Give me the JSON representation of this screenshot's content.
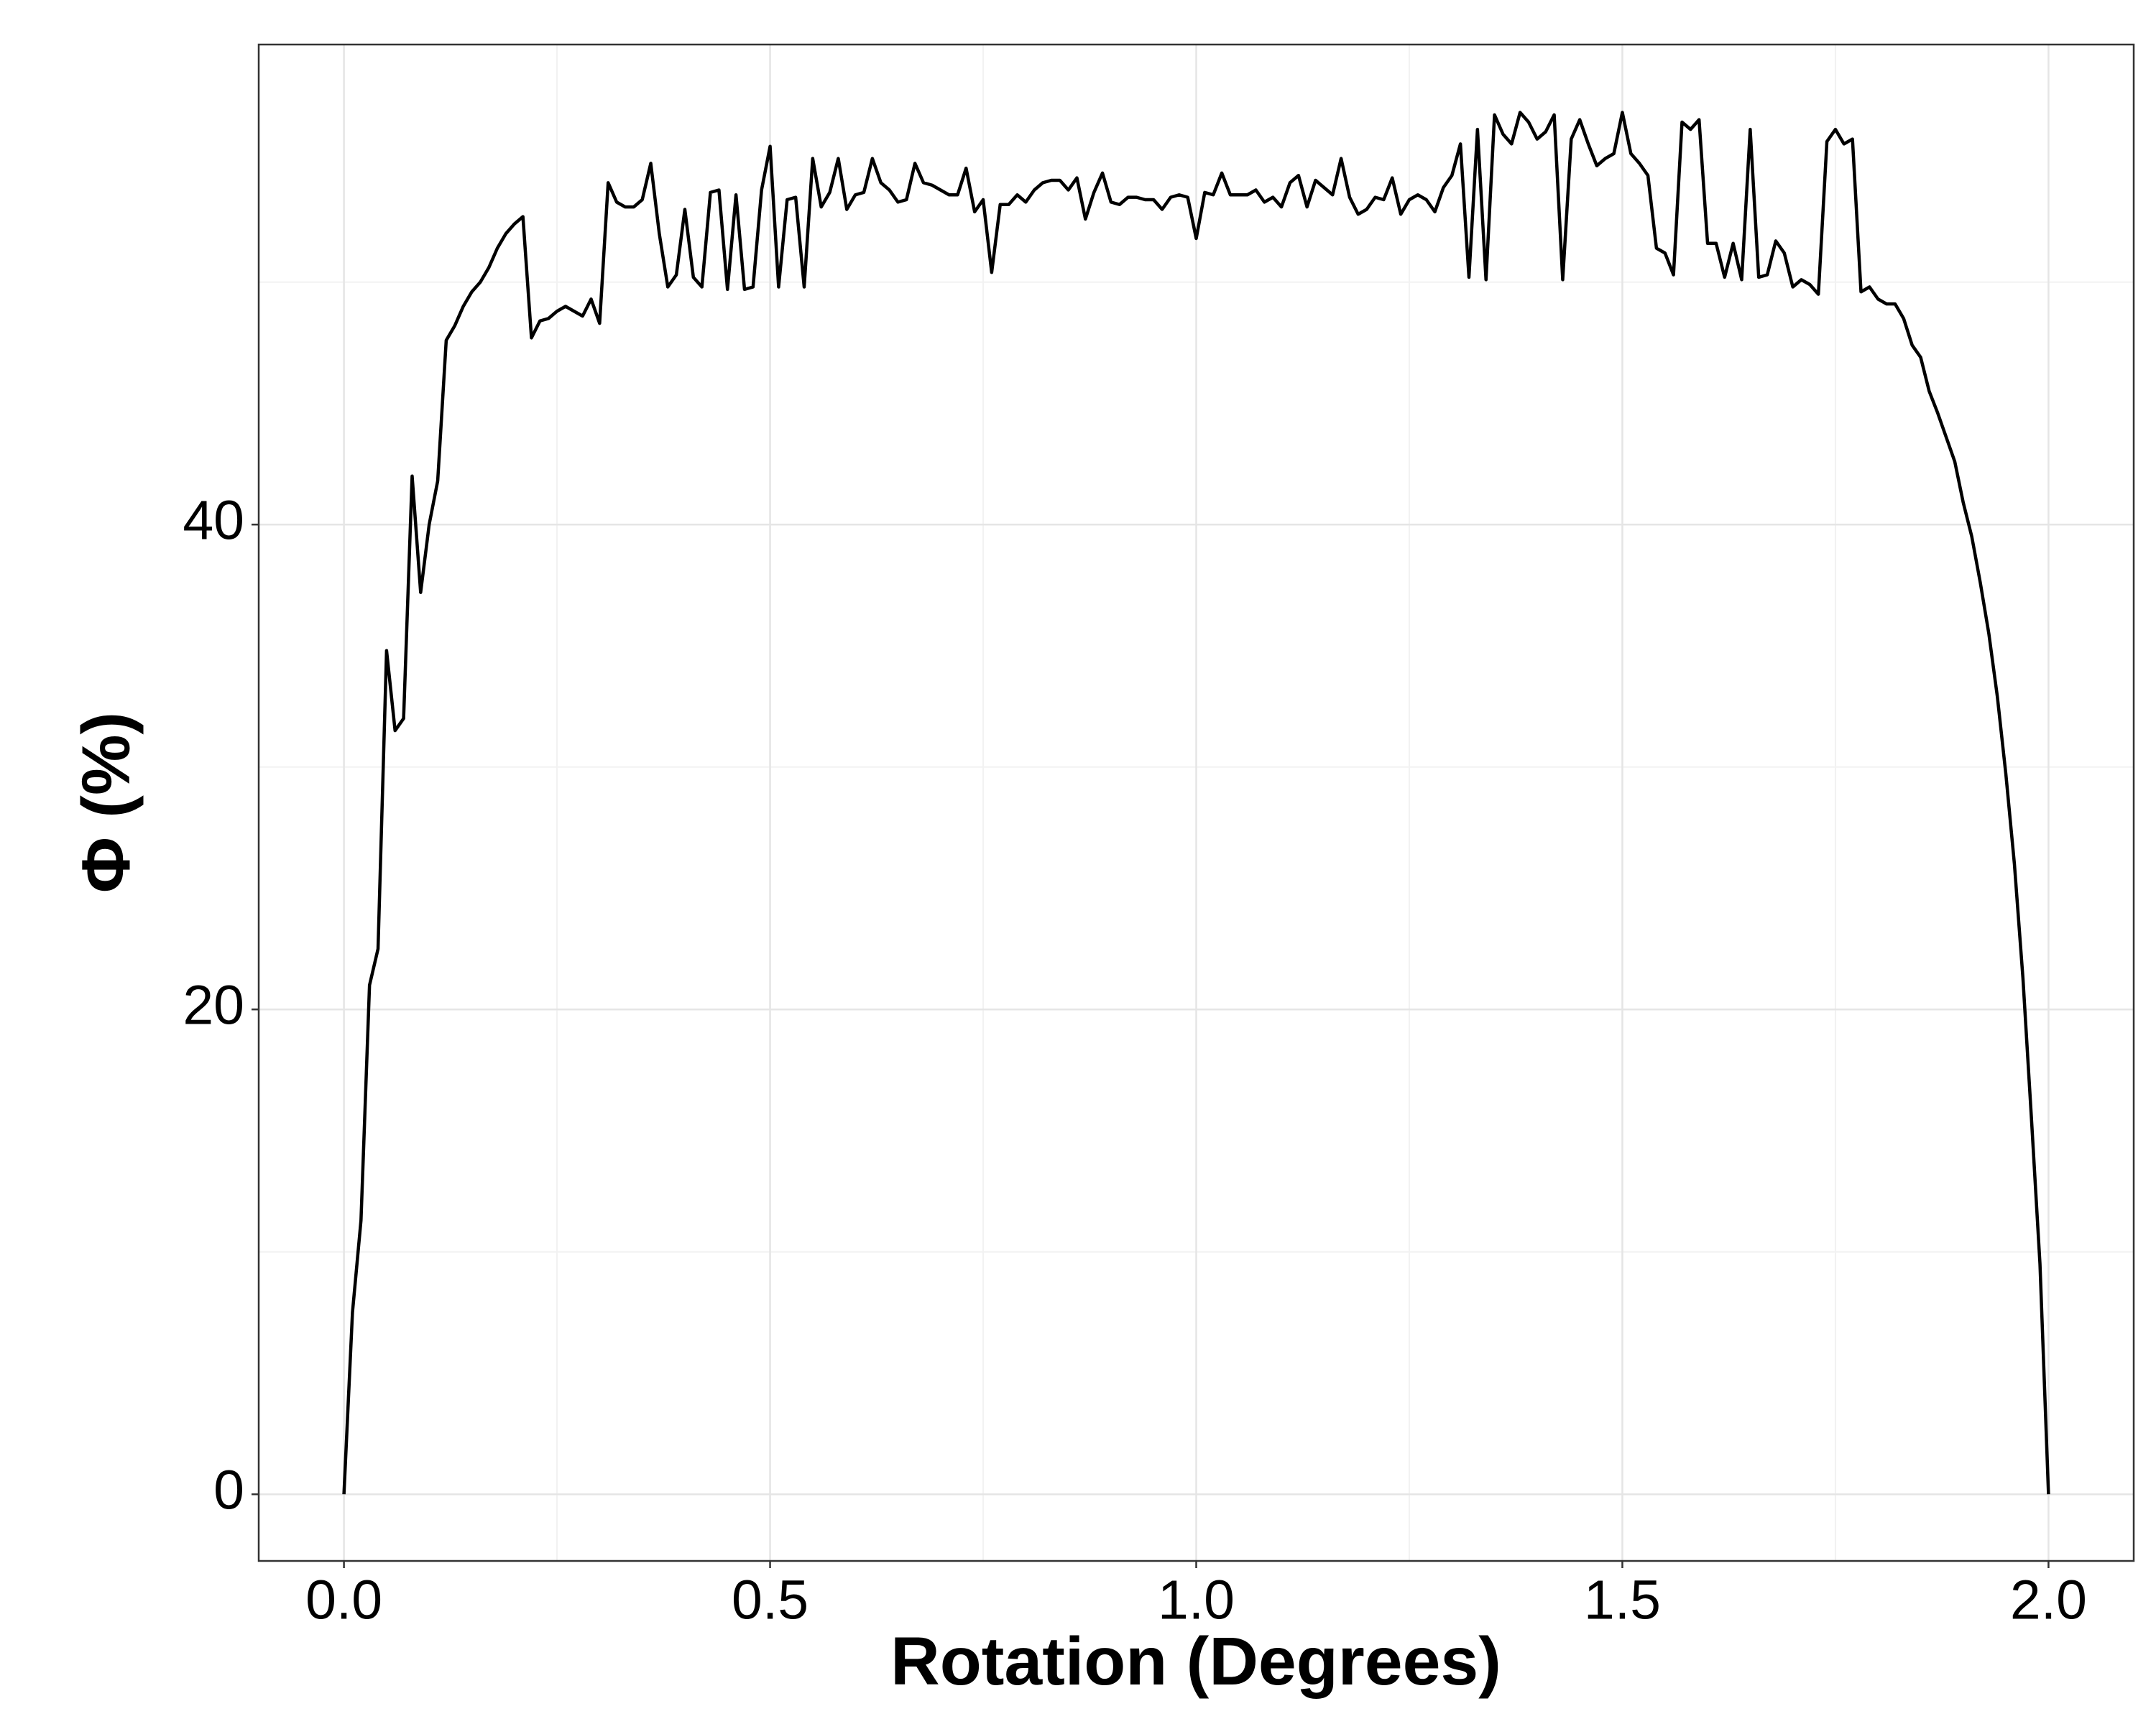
{
  "chart_data": {
    "type": "line",
    "x_label": "Rotation (Degrees)",
    "y_label": "Φ (%)",
    "x": [
      0,
      0.01,
      0.02,
      0.03,
      0.04,
      0.05,
      0.06,
      0.07,
      0.08,
      0.09,
      0.1,
      0.11,
      0.12,
      0.13,
      0.14,
      0.15,
      0.16,
      0.17,
      0.18,
      0.19,
      0.2,
      0.21,
      0.22,
      0.23,
      0.24,
      0.25,
      0.26,
      0.27,
      0.28,
      0.29,
      0.3,
      0.31,
      0.32,
      0.33,
      0.34,
      0.35,
      0.36,
      0.37,
      0.38,
      0.39,
      0.4,
      0.41,
      0.42,
      0.43,
      0.44,
      0.45,
      0.46,
      0.47,
      0.48,
      0.49,
      0.5,
      0.51,
      0.52,
      0.53,
      0.54,
      0.55,
      0.56,
      0.57,
      0.58,
      0.59,
      0.6,
      0.61,
      0.62,
      0.63,
      0.64,
      0.65,
      0.66,
      0.67,
      0.68,
      0.69,
      0.7,
      0.71,
      0.72,
      0.73,
      0.74,
      0.75,
      0.76,
      0.77,
      0.78,
      0.79,
      0.8,
      0.81,
      0.82,
      0.83,
      0.84,
      0.85,
      0.86,
      0.87,
      0.88,
      0.89,
      0.9,
      0.91,
      0.92,
      0.93,
      0.94,
      0.95,
      0.96,
      0.97,
      0.98,
      0.99,
      1,
      1.01,
      1.02,
      1.03,
      1.04,
      1.05,
      1.06,
      1.07,
      1.08,
      1.09,
      1.1,
      1.11,
      1.12,
      1.13,
      1.14,
      1.15,
      1.16,
      1.17,
      1.18,
      1.19,
      1.2,
      1.21,
      1.22,
      1.23,
      1.24,
      1.25,
      1.26,
      1.27,
      1.28,
      1.29,
      1.3,
      1.31,
      1.32,
      1.33,
      1.34,
      1.35,
      1.36,
      1.37,
      1.38,
      1.39,
      1.4,
      1.41,
      1.42,
      1.43,
      1.44,
      1.45,
      1.46,
      1.47,
      1.48,
      1.49,
      1.5,
      1.51,
      1.52,
      1.53,
      1.54,
      1.55,
      1.56,
      1.57,
      1.58,
      1.59,
      1.6,
      1.61,
      1.62,
      1.63,
      1.64,
      1.65,
      1.66,
      1.67,
      1.68,
      1.69,
      1.7,
      1.71,
      1.72,
      1.73,
      1.74,
      1.75,
      1.76,
      1.77,
      1.78,
      1.79,
      1.8,
      1.81,
      1.82,
      1.83,
      1.84,
      1.85,
      1.86,
      1.87,
      1.88,
      1.89,
      1.9,
      1.91,
      1.92,
      1.93,
      1.94,
      1.95,
      1.96,
      1.97,
      1.98,
      1.99,
      2
    ],
    "values": [
      0,
      7.5,
      11.3,
      21,
      22.5,
      34.8,
      31.5,
      32,
      42,
      37.2,
      40,
      41.8,
      47.6,
      48.2,
      49,
      49.6,
      50,
      50.6,
      51.4,
      52,
      52.4,
      52.7,
      47.7,
      48.4,
      48.5,
      48.8,
      49,
      48.8,
      48.6,
      49.3,
      48.3,
      54.1,
      53.3,
      53.1,
      53.1,
      53.4,
      54.9,
      52,
      49.8,
      50.3,
      53,
      50.2,
      49.8,
      53.7,
      53.8,
      49.7,
      53.6,
      49.7,
      49.8,
      53.8,
      55.6,
      49.8,
      53.4,
      53.5,
      49.8,
      55.1,
      53.1,
      53.7,
      55.1,
      53,
      53.6,
      53.7,
      55.1,
      54.1,
      53.8,
      53.3,
      53.4,
      54.9,
      54.1,
      54,
      53.8,
      53.6,
      53.6,
      54.7,
      52.9,
      53.4,
      50.4,
      53.2,
      53.2,
      53.6,
      53.3,
      53.8,
      54.1,
      54.2,
      54.2,
      53.8,
      54.3,
      52.6,
      53.7,
      54.5,
      53.3,
      53.2,
      53.5,
      53.5,
      53.4,
      53.4,
      53,
      53.5,
      53.6,
      53.5,
      51.8,
      53.7,
      53.6,
      54.5,
      53.6,
      53.6,
      53.6,
      53.8,
      53.3,
      53.5,
      53.1,
      54.1,
      54.4,
      53.1,
      54.2,
      53.9,
      53.6,
      55.1,
      53.5,
      52.8,
      53,
      53.5,
      53.4,
      54.3,
      52.8,
      53.4,
      53.6,
      53.4,
      52.9,
      53.9,
      54.4,
      55.7,
      50.2,
      56.3,
      50.1,
      56.9,
      56.1,
      55.7,
      57,
      56.6,
      55.9,
      56.2,
      56.9,
      50.1,
      55.9,
      56.7,
      55.7,
      54.8,
      55.1,
      55.3,
      57,
      55.3,
      54.9,
      54.4,
      51.4,
      51.2,
      50.3,
      56.6,
      56.3,
      56.7,
      51.6,
      51.6,
      50.2,
      51.6,
      50.1,
      56.3,
      50.2,
      50.3,
      51.7,
      51.2,
      49.8,
      50.1,
      49.9,
      49.5,
      55.8,
      56.3,
      55.7,
      55.9,
      49.6,
      49.8,
      49.3,
      49.1,
      49.1,
      48.5,
      47.4,
      46.9,
      45.5,
      44.6,
      43.6,
      42.6,
      40.9,
      39.5,
      37.6,
      35.5,
      32.9,
      29.7,
      26,
      21.3,
      15.5,
      9.5,
      0
    ],
    "color": "#000000",
    "xlim": [
      -0.1,
      2.1
    ],
    "ylim": [
      -2.75,
      59.8
    ],
    "xticks": [
      {
        "value": 0,
        "label": "0.0"
      },
      0.5,
      {
        "value": 1,
        "label": "1.0"
      },
      1.5,
      {
        "value": 2,
        "label": "2.0"
      }
    ],
    "yticks": [
      0,
      20,
      40
    ],
    "x_minor_grid": [
      0.25,
      0.75,
      1.25,
      1.75
    ],
    "y_minor_grid": [
      10,
      30,
      50
    ],
    "grid": true
  }
}
